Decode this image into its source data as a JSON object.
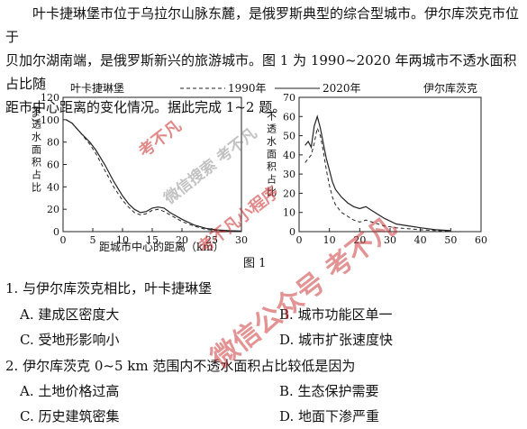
{
  "intro": {
    "line1": "叶卡捷琳堡市位于乌拉尔山脉东麓，是俄罗斯典型的综合型城市。伊尔库茨克市位于",
    "line2": "贝加尔湖南端，是俄罗斯新兴的旅游城市。图 1 为 1990~2020 年两城市不透水面积占比随",
    "line3": "距市中心距离的变化情况。据此完成 1~2 题。"
  },
  "figure": {
    "caption": "图 1",
    "legend_1990": "1990年",
    "legend_2020": "2020年",
    "left_title": "叶卡捷琳堡",
    "right_title": "伊尔库茨克",
    "ylabel": "不透水面积占比",
    "yunit": "（%）",
    "xlabel": "距城市中心的距离（km）"
  },
  "chart_data": [
    {
      "type": "line",
      "title": "叶卡捷琳堡",
      "xlabel": "距城市中心的距离（km）",
      "ylabel": "不透水面积占比（%）",
      "xlim": [
        0,
        30
      ],
      "ylim": [
        0,
        120
      ],
      "xticks": [
        0,
        5,
        10,
        15,
        20,
        25,
        30
      ],
      "yticks": [
        0,
        20,
        40,
        60,
        80,
        100,
        120
      ],
      "series": [
        {
          "name": "1990年",
          "style": "dashed",
          "x": [
            0.5,
            1.5,
            3,
            4.5,
            5.5,
            7,
            8.5,
            10,
            11,
            12,
            13,
            14,
            15,
            16,
            17,
            18,
            20,
            22,
            24,
            26,
            28,
            30
          ],
          "y": [
            100,
            97,
            88,
            78,
            70,
            55,
            40,
            28,
            22,
            17,
            15,
            16,
            19,
            20,
            18,
            15,
            9,
            5,
            2,
            1,
            0.5,
            0.3
          ]
        },
        {
          "name": "2020年",
          "style": "solid",
          "x": [
            0.5,
            1.5,
            3,
            4.5,
            5.5,
            7,
            8.5,
            10,
            11,
            12,
            13,
            14,
            15,
            16,
            17,
            18,
            20,
            22,
            24,
            26,
            28,
            30
          ],
          "y": [
            100,
            97,
            88,
            80,
            73,
            60,
            45,
            32,
            25,
            20,
            17,
            18,
            21,
            22,
            21,
            17,
            11,
            6,
            3,
            1.5,
            0.8,
            0.5
          ]
        }
      ]
    },
    {
      "type": "line",
      "title": "伊尔库茨克",
      "xlabel": "距城市中心的距离（km）",
      "ylabel": "不透水面积占比（%）",
      "xlim": [
        0,
        60
      ],
      "ylim": [
        0,
        70
      ],
      "xticks": [
        0,
        10,
        20,
        30,
        40,
        50,
        60
      ],
      "yticks": [
        0,
        10,
        20,
        30,
        40,
        50,
        60,
        70
      ],
      "series": [
        {
          "name": "1990年",
          "style": "dashed",
          "x": [
            2,
            3,
            4,
            5,
            6,
            7,
            8,
            9,
            10,
            11,
            12,
            14,
            16,
            18,
            20,
            22,
            24,
            28,
            32,
            36,
            40,
            45,
            50
          ],
          "y": [
            36,
            38,
            40,
            46,
            54,
            50,
            42,
            32,
            24,
            18,
            14,
            10,
            8,
            6,
            5,
            6,
            5,
            3,
            2,
            1.5,
            1,
            0.5,
            0.3
          ]
        },
        {
          "name": "2020年",
          "style": "solid",
          "x": [
            2,
            3,
            4,
            5,
            6,
            7,
            8,
            9,
            10,
            11,
            12,
            14,
            16,
            18,
            20,
            22,
            24,
            28,
            32,
            36,
            40,
            45,
            50
          ],
          "y": [
            45,
            47,
            44,
            55,
            60,
            54,
            46,
            38,
            32,
            26,
            22,
            18,
            15,
            13,
            12,
            13,
            11,
            7,
            4,
            3,
            2,
            1,
            0.5
          ]
        }
      ]
    }
  ],
  "questions": [
    {
      "stem": "1. 与伊尔库茨克相比，叶卡捷琳堡",
      "options": {
        "A": "A. 建成区密度大",
        "B": "B. 城市功能区单一",
        "C": "C. 受地形影响小",
        "D": "D. 城市扩张速度快"
      }
    },
    {
      "stem": "2. 伊尔库茨克 0~5 km 范围内不透水面积占比较低是因为",
      "options": {
        "A": "A. 土地价格过高",
        "B": "B. 生态保护需要",
        "C": "C. 历史建筑密集",
        "D": "D. 地面下渗严重"
      }
    }
  ],
  "watermarks": [
    "考不凡",
    "微信搜索 考不凡",
    "考不凡小程序",
    "微信公众号 考不凡"
  ],
  "colors": {
    "line": "#222222",
    "watermark": "#c82828"
  }
}
